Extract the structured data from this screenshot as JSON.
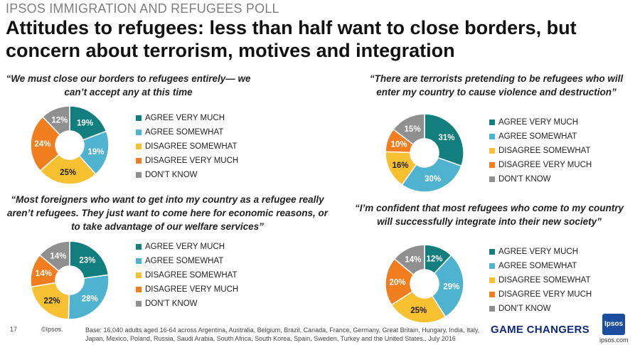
{
  "header": {
    "kicker": "IPSOS IMMIGRATION AND REFUGEES POLL",
    "title": "Attitudes to refugees: less than half want to close borders, but concern about terrorism, motives and integration"
  },
  "legend_labels": [
    "AGREE VERY MUCH",
    "AGREE SOMEWHAT",
    "DISAGREE SOMEWHAT",
    "DISAGREE VERY MUCH",
    "DON'T KNOW"
  ],
  "colors": [
    "#127e7e",
    "#4fb3cf",
    "#f6c031",
    "#f07d1e",
    "#8f8f8f"
  ],
  "chart_data": [
    {
      "type": "pie",
      "title": "“We must close our borders to refugees entirely— we can’t accept any at this time",
      "categories": [
        "AGREE VERY MUCH",
        "AGREE SOMEWHAT",
        "DISAGREE SOMEWHAT",
        "DISAGREE VERY MUCH",
        "DON'T KNOW"
      ],
      "values": [
        19,
        19,
        25,
        24,
        12
      ],
      "labels": [
        "19%",
        "19%",
        "25%",
        "24%",
        "12%"
      ]
    },
    {
      "type": "pie",
      "title": "“There are terrorists pretending to be refugees who will enter my country to cause violence and destruction”",
      "categories": [
        "AGREE VERY MUCH",
        "AGREE SOMEWHAT",
        "DISAGREE SOMEWHAT",
        "DISAGREE VERY MUCH",
        "DON'T KNOW"
      ],
      "values": [
        31,
        30,
        16,
        10,
        15
      ],
      "labels": [
        "31%",
        "30%",
        "16%",
        "10%",
        "15%"
      ]
    },
    {
      "type": "pie",
      "title": "“Most foreigners who want to get into my country as a refugee really aren’t refugees. They just want to come here for economic reasons, or to take advantage of our welfare services”",
      "categories": [
        "AGREE VERY MUCH",
        "AGREE SOMEWHAT",
        "DISAGREE SOMEWHAT",
        "DISAGREE VERY MUCH",
        "DON'T KNOW"
      ],
      "values": [
        23,
        28,
        22,
        14,
        14
      ],
      "labels": [
        "23%",
        "28%",
        "22%",
        "14%",
        "14%"
      ]
    },
    {
      "type": "pie",
      "title": "“I’m confident that most refugees who come to my country will successfully integrate into their new society”",
      "categories": [
        "AGREE VERY MUCH",
        "AGREE SOMEWHAT",
        "DISAGREE SOMEWHAT",
        "DISAGREE VERY MUCH",
        "DON'T KNOW"
      ],
      "values": [
        12,
        29,
        25,
        20,
        14
      ],
      "labels": [
        "12%",
        "29%",
        "25%",
        "20%",
        "14%"
      ]
    }
  ],
  "footer": {
    "page_number": "17",
    "copyright": "©Ipsos.",
    "base_note": "Base: 16,040 adults aged 16-64 across  Argentina, Australia, Belgium, Brazil, Canada, France, Germany, Great Britain, Hungary, India, Italy, Japan, Mexico, Poland, Russia, Saudi Arabia, South Africa, South Korea, Spain, Sweden, Turkey and the United States., July 2016",
    "tagline": "GAME CHANGERS",
    "logo_text": "Ipsos",
    "url": "ipsos.com"
  }
}
